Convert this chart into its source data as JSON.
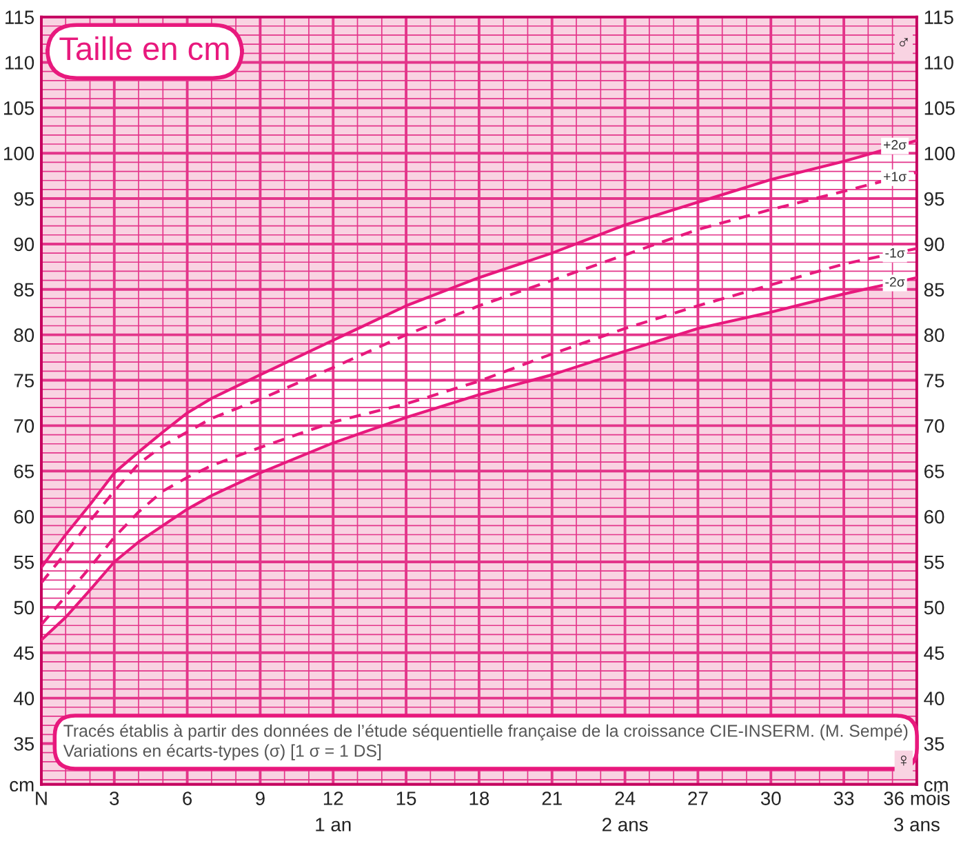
{
  "chart_data": {
    "type": "line",
    "title": "Taille en cm",
    "x": [
      0,
      1,
      2,
      3,
      4,
      5,
      6,
      7,
      9,
      12,
      15,
      18,
      21,
      24,
      27,
      30,
      33,
      36
    ],
    "series": [
      {
        "name": "+2σ",
        "color": "#e8197d",
        "line_style": "solid",
        "values": [
          54.4,
          58.0,
          61.3,
          64.8,
          67.1,
          69.3,
          71.4,
          73.0,
          75.6,
          79.4,
          83.2,
          86.3,
          89.0,
          92.1,
          94.6,
          97.1,
          99.1,
          101.4
        ],
        "lower": [
          46.4,
          48.9,
          51.9,
          55.0,
          57.2,
          59.0,
          60.8,
          62.3,
          64.8,
          68.1,
          70.9,
          73.4,
          75.6,
          78.2,
          80.7,
          82.5,
          84.5,
          86.3
        ],
        "upper": [
          54.4,
          58.0,
          61.3,
          64.8,
          67.1,
          69.3,
          71.4,
          73.0,
          75.6,
          79.4,
          83.2,
          86.3,
          89.0,
          92.1,
          94.6,
          97.1,
          99.1,
          101.4
        ]
      },
      {
        "name": "+1σ",
        "color": "#e8197d",
        "line_style": "dashed",
        "values": [
          52.7,
          56.0,
          59.5,
          62.8,
          65.8,
          67.8,
          69.3,
          70.8,
          72.9,
          76.4,
          80.0,
          83.2,
          86.0,
          88.8,
          91.6,
          93.8,
          95.8,
          97.9
        ]
      },
      {
        "name": "-1σ",
        "color": "#e8197d",
        "line_style": "dashed",
        "values": [
          48.1,
          51.2,
          54.4,
          57.7,
          60.5,
          62.8,
          64.3,
          65.6,
          67.6,
          70.4,
          72.4,
          74.9,
          77.9,
          80.7,
          83.2,
          85.5,
          87.8,
          89.5
        ]
      },
      {
        "name": "-2σ",
        "color": "#e8197d",
        "line_style": "solid",
        "values": [
          46.4,
          48.9,
          51.9,
          55.0,
          57.2,
          59.0,
          60.8,
          62.3,
          64.8,
          68.1,
          70.9,
          73.4,
          75.6,
          78.2,
          80.7,
          82.5,
          84.5,
          86.3
        ]
      }
    ],
    "xlim": [
      0,
      36
    ],
    "xticks": [
      {
        "value": 0,
        "label": "N"
      },
      {
        "value": 1,
        "label": null
      },
      {
        "value": 2,
        "label": null
      },
      3,
      {
        "value": 4,
        "label": null
      },
      {
        "value": 5,
        "label": null
      },
      6,
      {
        "value": 7,
        "label": null
      },
      {
        "value": 8,
        "label": null
      },
      9,
      {
        "value": 10,
        "label": null
      },
      {
        "value": 11,
        "label": null
      },
      {
        "value": 12,
        "label": "12\n1 an"
      },
      {
        "value": 13,
        "label": null
      },
      {
        "value": 14,
        "label": null
      },
      15,
      {
        "value": 16,
        "label": null
      },
      {
        "value": 17,
        "label": null
      },
      18,
      {
        "value": 19,
        "label": null
      },
      {
        "value": 20,
        "label": null
      },
      21,
      {
        "value": 22,
        "label": null
      },
      {
        "value": 23,
        "label": null
      },
      {
        "value": 24,
        "label": "24\n2 ans"
      },
      {
        "value": 25,
        "label": null
      },
      {
        "value": 26,
        "label": null
      },
      27,
      {
        "value": 28,
        "label": null
      },
      {
        "value": 29,
        "label": null
      },
      30,
      {
        "value": 31,
        "label": null
      },
      {
        "value": 32,
        "label": null
      },
      33,
      {
        "value": 34,
        "label": null
      },
      {
        "value": 35,
        "label": null
      },
      {
        "value": 36,
        "label": "36 mois\n3 ans"
      }
    ],
    "ylim": [
      30.5,
      115
    ],
    "yticks": [
      {
        "value": 30.5,
        "label": "cm"
      },
      {
        "value": 31,
        "label": null
      },
      {
        "value": 32,
        "label": null
      },
      {
        "value": 33,
        "label": null
      },
      {
        "value": 34,
        "label": null
      },
      35,
      {
        "value": 36,
        "label": null
      },
      {
        "value": 37,
        "label": null
      },
      {
        "value": 38,
        "label": null
      },
      {
        "value": 39,
        "label": null
      },
      40,
      {
        "value": 41,
        "label": null
      },
      {
        "value": 42,
        "label": null
      },
      {
        "value": 43,
        "label": null
      },
      {
        "value": 44,
        "label": null
      },
      45,
      {
        "value": 46,
        "label": null
      },
      {
        "value": 47,
        "label": null
      },
      {
        "value": 48,
        "label": null
      },
      {
        "value": 49,
        "label": null
      },
      50,
      {
        "value": 51,
        "label": null
      },
      {
        "value": 52,
        "label": null
      },
      {
        "value": 53,
        "label": null
      },
      {
        "value": 54,
        "label": null
      },
      55,
      {
        "value": 56,
        "label": null
      },
      {
        "value": 57,
        "label": null
      },
      {
        "value": 58,
        "label": null
      },
      {
        "value": 59,
        "label": null
      },
      60,
      {
        "value": 61,
        "label": null
      },
      {
        "value": 62,
        "label": null
      },
      {
        "value": 63,
        "label": null
      },
      {
        "value": 64,
        "label": null
      },
      65,
      {
        "value": 66,
        "label": null
      },
      {
        "value": 67,
        "label": null
      },
      {
        "value": 68,
        "label": null
      },
      {
        "value": 69,
        "label": null
      },
      70,
      {
        "value": 71,
        "label": null
      },
      {
        "value": 72,
        "label": null
      },
      {
        "value": 73,
        "label": null
      },
      {
        "value": 74,
        "label": null
      },
      75,
      {
        "value": 76,
        "label": null
      },
      {
        "value": 77,
        "label": null
      },
      {
        "value": 78,
        "label": null
      },
      {
        "value": 79,
        "label": null
      },
      80,
      {
        "value": 81,
        "label": null
      },
      {
        "value": 82,
        "label": null
      },
      {
        "value": 83,
        "label": null
      },
      {
        "value": 84,
        "label": null
      },
      85,
      {
        "value": 86,
        "label": null
      },
      {
        "value": 87,
        "label": null
      },
      {
        "value": 88,
        "label": null
      },
      {
        "value": 89,
        "label": null
      },
      90,
      {
        "value": 91,
        "label": null
      },
      {
        "value": 92,
        "label": null
      },
      {
        "value": 93,
        "label": null
      },
      {
        "value": 94,
        "label": null
      },
      95,
      {
        "value": 96,
        "label": null
      },
      {
        "value": 97,
        "label": null
      },
      {
        "value": 98,
        "label": null
      },
      {
        "value": 99,
        "label": null
      },
      100,
      {
        "value": 101,
        "label": null
      },
      {
        "value": 102,
        "label": null
      },
      {
        "value": 103,
        "label": null
      },
      {
        "value": 104,
        "label": null
      },
      105,
      {
        "value": 106,
        "label": null
      },
      {
        "value": 107,
        "label": null
      },
      {
        "value": 108,
        "label": null
      },
      {
        "value": 109,
        "label": null
      },
      110,
      {
        "value": 111,
        "label": null
      },
      {
        "value": 112,
        "label": null
      },
      {
        "value": 113,
        "label": null
      },
      {
        "value": 114,
        "label": null
      },
      115
    ],
    "y2lim": [
      30.5,
      115
    ],
    "y2ticks": [
      {
        "value": 30.5,
        "label": "cm"
      },
      35,
      40,
      45,
      50,
      55,
      60,
      65,
      70,
      75,
      80,
      85,
      90,
      95,
      100,
      105,
      110,
      115
    ],
    "grid": true,
    "legend": false,
    "annotations": [
      "Tracés établis à partir des données de l’étude séquentielle française de la croissance CIE-INSERM. (M. Sempé)\nVariations en écarts-types (σ) [1 σ = 1 DS]",
      "♂",
      "♀"
    ]
  }
}
